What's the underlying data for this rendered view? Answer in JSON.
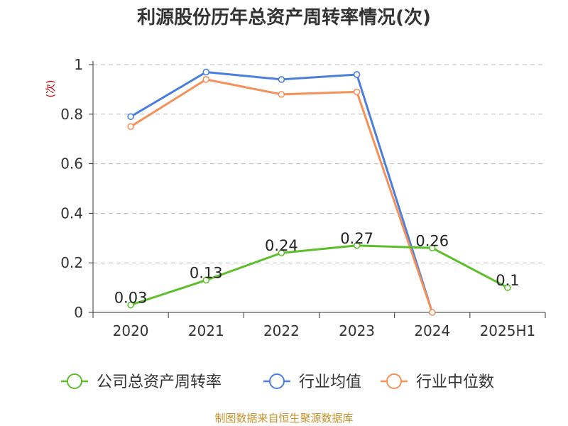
{
  "chart_data": {
    "type": "line",
    "title": "利源股份历年总资产周转率情况(次)",
    "ylabel": "(次)",
    "xlabel": "",
    "categories": [
      "2020",
      "2021",
      "2022",
      "2023",
      "2024",
      "2025H1"
    ],
    "ylim": [
      0,
      1
    ],
    "yticks": [
      "0",
      "0.2",
      "0.4",
      "0.6",
      "0.8",
      "1"
    ],
    "grid": true,
    "legend_position": "bottom",
    "series": [
      {
        "name": "公司总资产周转率",
        "color": "#5cbf2a",
        "values": [
          0.03,
          0.13,
          0.24,
          0.27,
          0.26,
          0.1
        ],
        "labels": [
          "0.03",
          "0.13",
          "0.24",
          "0.27",
          "0.26",
          "0.1"
        ]
      },
      {
        "name": "行业均值",
        "color": "#4a7fdc",
        "values": [
          0.79,
          0.97,
          0.94,
          0.96,
          0,
          null
        ]
      },
      {
        "name": "行业中位数",
        "color": "#f4915a",
        "values": [
          0.75,
          0.94,
          0.88,
          0.89,
          0,
          null
        ]
      }
    ]
  },
  "source_note": "制图数据来自恒生聚源数据库"
}
